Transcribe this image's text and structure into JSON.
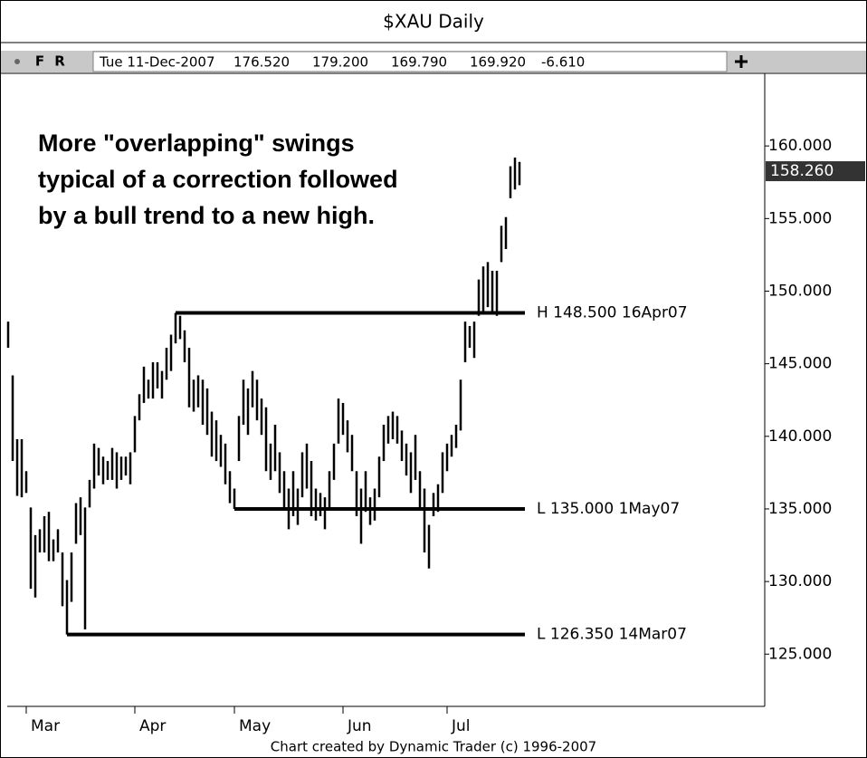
{
  "window": {
    "title": "$XAU   Daily",
    "toolbar": {
      "buttons": [
        "F",
        "R"
      ],
      "fields": [
        "Tue 11-Dec-2007",
        "176.520",
        "179.200",
        "169.790",
        "169.920",
        "-6.610"
      ]
    },
    "footer": "Chart created by Dynamic Trader  (c) 1996-2007"
  },
  "chart_data": {
    "type": "ohlc",
    "annotation": [
      "More \"overlapping\" swings",
      "typical of a correction followed",
      "by a bull trend to a new high."
    ],
    "categories": [
      null,
      null,
      null,
      null,
      "Mar",
      null,
      null,
      null,
      null,
      null,
      null,
      null,
      null,
      null,
      null,
      null,
      null,
      null,
      null,
      null,
      null,
      null,
      null,
      null,
      null,
      null,
      null,
      null,
      "Apr",
      null,
      null,
      null,
      null,
      null,
      null,
      null,
      null,
      null,
      null,
      null,
      null,
      null,
      null,
      null,
      null,
      null,
      null,
      null,
      null,
      null,
      "May",
      null,
      null,
      null,
      null,
      null,
      null,
      null,
      null,
      null,
      null,
      null,
      null,
      null,
      null,
      null,
      null,
      null,
      null,
      null,
      null,
      null,
      null,
      null,
      "Jun",
      null,
      null,
      null,
      null,
      null,
      null,
      null,
      null,
      null,
      null,
      null,
      null,
      null,
      null,
      null,
      null,
      null,
      null,
      null,
      null,
      null,
      null,
      "Jul",
      null,
      null,
      null,
      null,
      null,
      null,
      null,
      null,
      null,
      null,
      null,
      null,
      null,
      null,
      null,
      null
    ],
    "high": [
      147.9,
      144.2,
      139.8,
      139.8,
      137.6,
      135.1,
      133.2,
      133.6,
      134.5,
      134.8,
      132.9,
      133.6,
      132.0,
      130.1,
      132.0,
      135.4,
      135.8,
      135.1,
      137.0,
      139.5,
      139.2,
      138.6,
      138.3,
      139.2,
      138.9,
      138.6,
      138.6,
      138.9,
      141.4,
      142.9,
      144.8,
      143.9,
      145.1,
      145.1,
      144.5,
      146.1,
      147.0,
      148.5,
      148.3,
      147.3,
      146.1,
      143.9,
      144.2,
      143.9,
      143.3,
      141.7,
      141.1,
      140.1,
      139.5,
      137.6,
      136.4,
      141.4,
      143.9,
      143.3,
      144.5,
      143.9,
      142.6,
      142.0,
      139.5,
      140.8,
      138.9,
      137.6,
      136.4,
      137.6,
      136.4,
      138.9,
      139.5,
      138.3,
      136.4,
      136.1,
      135.8,
      137.6,
      139.5,
      142.6,
      142.3,
      141.1,
      140.1,
      137.6,
      136.4,
      137.6,
      135.8,
      136.4,
      138.6,
      140.8,
      141.4,
      141.7,
      141.4,
      140.4,
      139.5,
      138.9,
      140.1,
      137.6,
      136.4,
      133.9,
      136.1,
      136.7,
      138.9,
      139.5,
      140.1,
      140.8,
      143.9,
      147.9,
      147.6,
      147.9,
      150.8,
      151.7,
      152.0,
      151.4,
      151.4,
      154.5,
      155.1,
      158.6,
      159.2,
      158.9
    ],
    "low": [
      146.1,
      138.3,
      135.9,
      135.8,
      136.1,
      129.5,
      128.9,
      132.0,
      132.0,
      131.4,
      131.4,
      132.0,
      128.3,
      126.35,
      128.6,
      132.6,
      133.2,
      126.7,
      135.1,
      136.4,
      137.3,
      136.7,
      137.0,
      137.0,
      136.4,
      137.0,
      137.3,
      136.7,
      138.9,
      141.1,
      142.3,
      142.6,
      142.6,
      143.3,
      142.6,
      143.9,
      144.5,
      146.4,
      146.7,
      145.1,
      142.0,
      141.7,
      142.0,
      140.8,
      140.1,
      138.6,
      138.3,
      137.9,
      136.7,
      135.4,
      135.0,
      138.3,
      140.8,
      140.1,
      142.0,
      141.1,
      140.1,
      137.6,
      137.0,
      137.6,
      136.1,
      135.1,
      133.6,
      134.5,
      133.9,
      135.8,
      136.4,
      134.5,
      134.2,
      134.5,
      133.6,
      135.1,
      137.0,
      139.5,
      140.1,
      138.9,
      137.6,
      134.5,
      132.6,
      134.8,
      133.9,
      134.2,
      135.8,
      138.3,
      139.5,
      139.8,
      139.5,
      138.3,
      137.3,
      136.1,
      137.0,
      135.1,
      132.0,
      130.9,
      134.5,
      134.8,
      136.1,
      137.6,
      138.6,
      139.2,
      140.4,
      145.1,
      146.1,
      145.4,
      148.3,
      148.6,
      148.9,
      148.6,
      148.3,
      152.0,
      152.9,
      156.4,
      157.0,
      157.3
    ],
    "color": "#000000",
    "levels": [
      {
        "label": "H 148.500 16Apr07",
        "value": 148.5
      },
      {
        "label": "L 135.000 1May07",
        "value": 135.0
      },
      {
        "label": "L 126.350 14Mar07",
        "value": 126.35
      }
    ],
    "last_price": 158.26,
    "last_price_label": "158.260",
    "ylim": [
      121.4,
      165
    ],
    "yticks": [
      {
        "value": 125,
        "label": "125.000"
      },
      {
        "value": 130,
        "label": "130.000"
      },
      {
        "value": 135,
        "label": "135.000"
      },
      {
        "value": 140,
        "label": "140.000"
      },
      {
        "value": 145,
        "label": "145.000"
      },
      {
        "value": 150,
        "label": "150.000"
      },
      {
        "value": 155,
        "label": "155.000"
      },
      {
        "value": 160,
        "label": "160.000"
      }
    ]
  }
}
